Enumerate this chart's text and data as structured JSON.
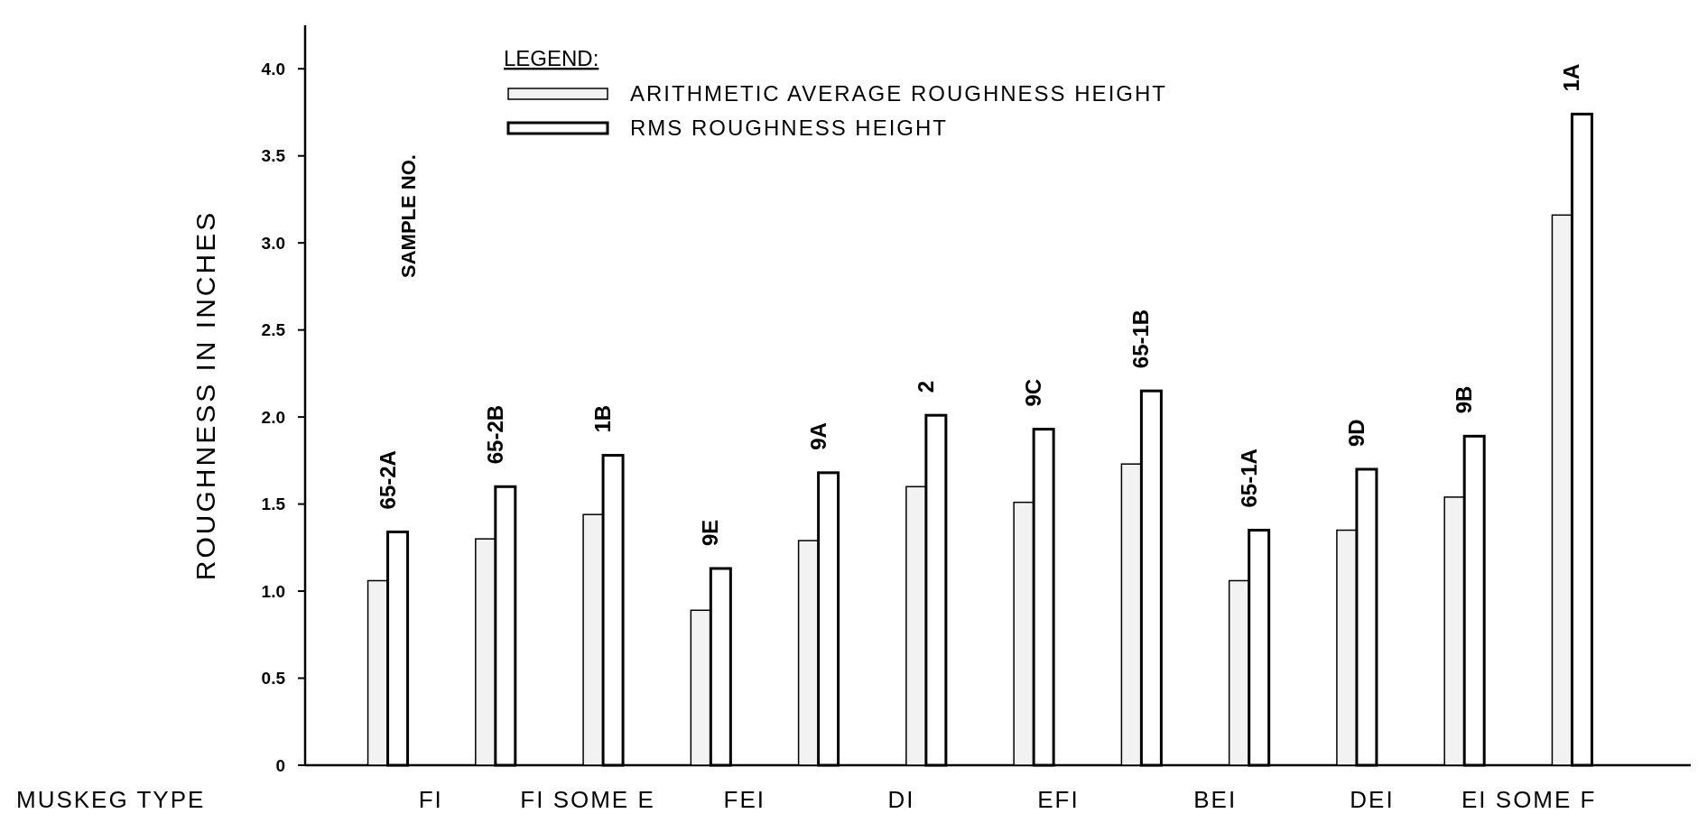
{
  "chart_data": {
    "type": "bar",
    "ylabel": "ROUGHNESS IN INCHES",
    "legend_title": "LEGEND:",
    "legend": "top left",
    "grid": false,
    "categories": [
      "65-2A",
      "65-2B",
      "1B",
      "9E",
      "9A",
      "2",
      "9C",
      "65-1B",
      "65-1A",
      "9D",
      "9B",
      "1A"
    ],
    "series": [
      {
        "name": "ARITHMETIC AVERAGE ROUGHNESS HEIGHT",
        "color": "#f2f2f2",
        "values": [
          1.06,
          1.3,
          1.44,
          0.89,
          1.29,
          1.6,
          1.51,
          1.73,
          1.06,
          1.35,
          1.54,
          3.16
        ]
      },
      {
        "name": "RMS ROUGHNESS HEIGHT",
        "color": "#ffffff",
        "values": [
          1.34,
          1.6,
          1.78,
          1.13,
          1.68,
          2.01,
          1.93,
          2.15,
          1.35,
          1.7,
          1.89,
          3.74
        ]
      }
    ],
    "ylim": [
      0,
      4.25
    ],
    "yticks": [
      0,
      0.5,
      {
        "value": 1,
        "label": "1.0"
      },
      1.5,
      {
        "value": 2,
        "label": "2.0"
      },
      2.5,
      {
        "value": 3,
        "label": "3.0"
      },
      3.5,
      {
        "value": 4,
        "label": "4.0"
      }
    ],
    "annotations": [
      "SAMPLE NO.",
      "MUSKEG TYPE",
      "FI",
      "FI SOME E",
      "FEI",
      "DI",
      "EFI",
      "BEI",
      "DEI",
      "EI SOME F"
    ]
  }
}
